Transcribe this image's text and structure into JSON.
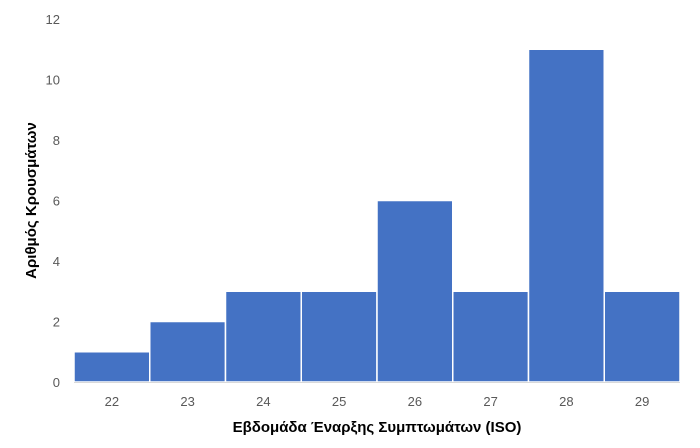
{
  "chart_data": {
    "type": "bar",
    "title": "",
    "xlabel": "Εβδομάδα Έναρξης Συμπτωμάτων (ISO)",
    "ylabel": "Αριθμός Κρουσμάτων",
    "categories": [
      "22",
      "23",
      "24",
      "25",
      "26",
      "27",
      "28",
      "29"
    ],
    "values": [
      1,
      2,
      3,
      3,
      6,
      3,
      11,
      3
    ],
    "ylim": [
      0,
      12
    ],
    "yticks": [
      0,
      2,
      4,
      6,
      8,
      10,
      12
    ],
    "grid": false,
    "legend": "none",
    "bar_color": "#4472C4",
    "bar_edge_color": "#ffffff"
  }
}
